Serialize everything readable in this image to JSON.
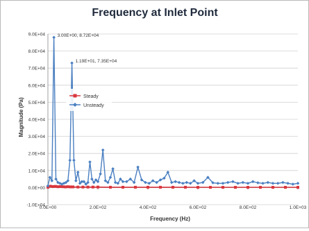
{
  "chart_data": {
    "type": "line",
    "title": "Frequency at Inlet Point",
    "xlabel": "Frequency (Hz)",
    "ylabel": "Magnitude (Pa)",
    "xlim": [
      0,
      1000
    ],
    "ylim": [
      -10000,
      90000
    ],
    "x_ticks": [
      {
        "value": 0,
        "label": "0.0E+00"
      },
      {
        "value": 200,
        "label": "2.0E+02"
      },
      {
        "value": 400,
        "label": "4.0E+02"
      },
      {
        "value": 600,
        "label": "6.0E+02"
      },
      {
        "value": 800,
        "label": "8.0E+02"
      },
      {
        "value": 1000,
        "label": "1.0E+03"
      }
    ],
    "y_ticks": [
      {
        "value": -10000,
        "label": "-1.0E+04"
      },
      {
        "value": 0,
        "label": "0.0E+00"
      },
      {
        "value": 10000,
        "label": "1.0E+04"
      },
      {
        "value": 20000,
        "label": "2.0E+04"
      },
      {
        "value": 30000,
        "label": "3.0E+04"
      },
      {
        "value": 40000,
        "label": "4.0E+04"
      },
      {
        "value": 50000,
        "label": "5.0E+04"
      },
      {
        "value": 60000,
        "label": "6.0E+04"
      },
      {
        "value": 70000,
        "label": "7.0E+04"
      },
      {
        "value": 80000,
        "label": "8.0E+04"
      },
      {
        "value": 90000,
        "label": "9.0E+04"
      }
    ],
    "grid": "horizontal",
    "legend_position": "left-center",
    "series": [
      {
        "name": "Steady",
        "color": "#d9363e",
        "marker": "square",
        "x": [
          0,
          10,
          20,
          30,
          40,
          50,
          60,
          70,
          80,
          90,
          100,
          120,
          140,
          160,
          180,
          200,
          250,
          300,
          350,
          400,
          450,
          500,
          550,
          600,
          650,
          700,
          750,
          800,
          850,
          900,
          950,
          1000
        ],
        "y": [
          200,
          800,
          600,
          700,
          500,
          600,
          500,
          400,
          500,
          400,
          400,
          300,
          300,
          300,
          300,
          300,
          200,
          200,
          200,
          200,
          200,
          200,
          200,
          150,
          150,
          150,
          150,
          150,
          150,
          150,
          150,
          150
        ]
      },
      {
        "name": "Unsteady",
        "color": "#4a7fc1",
        "marker": "diamond",
        "x": [
          0,
          8,
          16,
          24,
          32,
          40,
          48,
          56,
          64,
          72,
          80,
          88,
          96,
          104,
          112,
          120,
          128,
          136,
          144,
          152,
          160,
          168,
          176,
          184,
          192,
          200,
          210,
          220,
          230,
          240,
          250,
          260,
          270,
          280,
          290,
          300,
          315,
          330,
          345,
          360,
          375,
          390,
          405,
          420,
          435,
          450,
          465,
          480,
          495,
          510,
          525,
          540,
          555,
          570,
          585,
          600,
          620,
          640,
          660,
          680,
          700,
          720,
          740,
          760,
          780,
          800,
          820,
          840,
          860,
          880,
          900,
          920,
          940,
          960,
          980,
          1000
        ],
        "y": [
          1000,
          6000,
          4000,
          88000,
          5000,
          3000,
          2500,
          2000,
          2500,
          3000,
          4000,
          16000,
          73000,
          16000,
          4000,
          9000,
          2500,
          3500,
          3500,
          2000,
          3000,
          15000,
          5000,
          3000,
          4500,
          3500,
          8000,
          22000,
          4000,
          3000,
          6000,
          11000,
          3000,
          2500,
          5000,
          3500,
          3500,
          5000,
          3000,
          12000,
          4500,
          3000,
          2500,
          4000,
          3000,
          4500,
          5500,
          9000,
          3000,
          3500,
          3000,
          2500,
          3000,
          2500,
          4000,
          2500,
          3000,
          6000,
          2800,
          2500,
          2500,
          3000,
          3500,
          2500,
          3000,
          2500,
          3500,
          2800,
          2500,
          3000,
          2500,
          2500,
          3000,
          2500,
          2000,
          2500
        ]
      }
    ],
    "annotations": [
      {
        "text": "3.00E+00, 8.72E+04",
        "x": 24,
        "y": 88000
      },
      {
        "text": "1.19E+01, 7.35E+04",
        "x": 96,
        "y": 73000
      }
    ]
  }
}
